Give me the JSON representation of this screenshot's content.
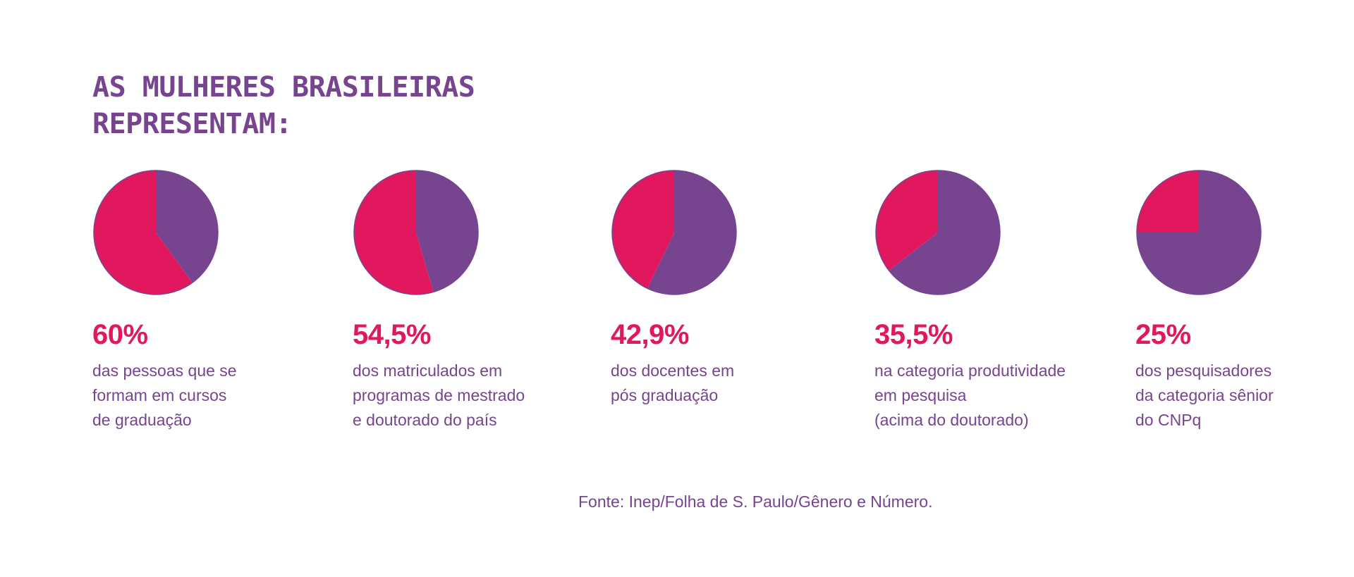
{
  "title_lines": [
    "AS MULHERES BRASILEIRAS",
    "REPRESENTAM:"
  ],
  "colors": {
    "women": "#e2185f",
    "rest": "#77448f",
    "text": "#77448f"
  },
  "chart_data": [
    {
      "type": "pie",
      "values": [
        60,
        40
      ],
      "value_label": "60%",
      "description": [
        "das pessoas que se",
        "formam em cursos",
        "de graduação"
      ]
    },
    {
      "type": "pie",
      "values": [
        54.5,
        45.5
      ],
      "value_label": "54,5%",
      "description": [
        "dos matriculados em",
        "programas de mestrado",
        "e doutorado do país"
      ]
    },
    {
      "type": "pie",
      "values": [
        42.9,
        57.1
      ],
      "value_label": "42,9%",
      "description": [
        "dos docentes em",
        "pós graduação"
      ]
    },
    {
      "type": "pie",
      "values": [
        35.5,
        64.5
      ],
      "value_label": "35,5%",
      "description": [
        "na categoria produtividade",
        "em pesquisa",
        "(acima do doutorado)"
      ]
    },
    {
      "type": "pie",
      "values": [
        25,
        75
      ],
      "value_label": "25%",
      "description": [
        "dos pesquisadores",
        "da categoria sênior",
        "do CNPq"
      ]
    }
  ],
  "source": "Fonte: Inep/Folha de S. Paulo/Gênero e Número."
}
